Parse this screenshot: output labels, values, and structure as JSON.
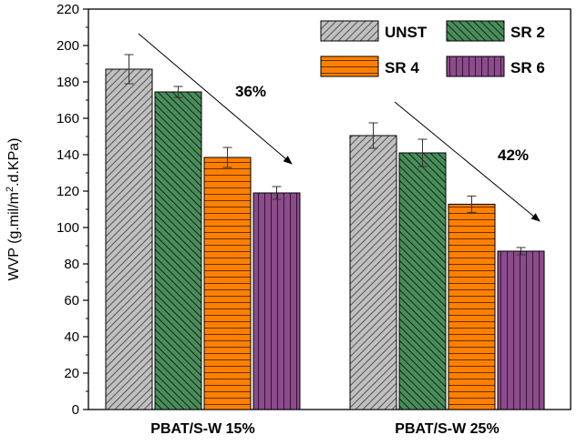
{
  "chart_data": {
    "type": "bar",
    "categories": [
      "PBAT/S-W 15%",
      "PBAT/S-W 25%"
    ],
    "series": [
      {
        "name": "UNST",
        "values": [
          187,
          150.5
        ],
        "errors": [
          8,
          7
        ],
        "color": "#c0c0c0",
        "pattern": "diag-right"
      },
      {
        "name": "SR 2",
        "values": [
          174.5,
          141
        ],
        "errors": [
          3,
          7.5
        ],
        "color": "#4a8c5a",
        "pattern": "diag-left"
      },
      {
        "name": "SR 4",
        "values": [
          138.5,
          112.8
        ],
        "errors": [
          5.5,
          4.5
        ],
        "color": "#ff8000",
        "pattern": "horizontal"
      },
      {
        "name": "SR 6",
        "values": [
          119,
          87
        ],
        "errors": [
          3.5,
          2
        ],
        "color": "#8b4c8b",
        "pattern": "vertical"
      }
    ],
    "ylabel_main": "WVP (g.mil/m",
    "ylabel_sup": "2",
    "ylabel_rest": ".d.KPa)",
    "ylim": [
      0,
      220
    ],
    "yticks": [
      0,
      20,
      40,
      60,
      80,
      100,
      120,
      140,
      160,
      180,
      200,
      220
    ],
    "annotations": [
      {
        "text": "36%",
        "group": 0
      },
      {
        "text": "42%",
        "group": 1
      }
    ],
    "legend_position": "top-right",
    "grid": false
  }
}
